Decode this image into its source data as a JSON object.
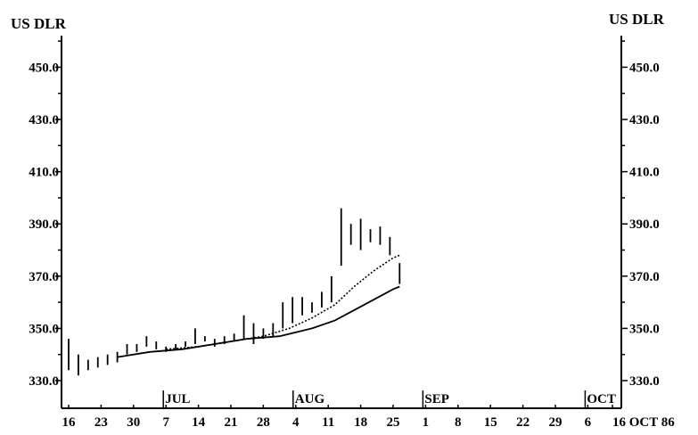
{
  "chart_data": {
    "type": "bar",
    "subtype": "high-low price chart with moving averages",
    "unit_label_left": "US DLR",
    "unit_label_right": "US DLR",
    "y_range": [
      320,
      460
    ],
    "y_ticks": [
      "330.0",
      "350.0",
      "370.0",
      "390.0",
      "410.0",
      "430.0",
      "450.0"
    ],
    "y_tick_values": [
      330,
      350,
      370,
      390,
      410,
      430,
      450
    ],
    "x_tick_labels": [
      "16",
      "23",
      "30",
      "7",
      "14",
      "21",
      "28",
      "4",
      "11",
      "18",
      "25",
      "1",
      "8",
      "15",
      "22",
      "29",
      "6",
      "16 OCT 86"
    ],
    "month_labels": [
      "JUL",
      "AUG",
      "SEP",
      "OCT"
    ],
    "month_start_tick_index": [
      3,
      7,
      11,
      16
    ],
    "grid": false,
    "bars": [
      {
        "t": 0.0,
        "low": 334,
        "high": 346
      },
      {
        "t": 0.3,
        "low": 332,
        "high": 340
      },
      {
        "t": 0.6,
        "low": 334,
        "high": 338
      },
      {
        "t": 0.9,
        "low": 335,
        "high": 339
      },
      {
        "t": 1.2,
        "low": 336,
        "high": 340
      },
      {
        "t": 1.5,
        "low": 337,
        "high": 341
      },
      {
        "t": 1.8,
        "low": 340,
        "high": 344
      },
      {
        "t": 2.1,
        "low": 341,
        "high": 344
      },
      {
        "t": 2.4,
        "low": 343,
        "high": 347
      },
      {
        "t": 2.7,
        "low": 342,
        "high": 345
      },
      {
        "t": 3.0,
        "low": 341,
        "high": 343
      },
      {
        "t": 3.3,
        "low": 342,
        "high": 344
      },
      {
        "t": 3.6,
        "low": 343,
        "high": 345
      },
      {
        "t": 3.9,
        "low": 344,
        "high": 350
      },
      {
        "t": 4.2,
        "low": 345,
        "high": 347
      },
      {
        "t": 4.5,
        "low": 343,
        "high": 346
      },
      {
        "t": 4.8,
        "low": 344,
        "high": 347
      },
      {
        "t": 5.1,
        "low": 345,
        "high": 348
      },
      {
        "t": 5.4,
        "low": 346,
        "high": 355
      },
      {
        "t": 5.7,
        "low": 344,
        "high": 352
      },
      {
        "t": 6.0,
        "low": 346,
        "high": 350
      },
      {
        "t": 6.3,
        "low": 347,
        "high": 352
      },
      {
        "t": 6.6,
        "low": 350,
        "high": 360
      },
      {
        "t": 6.9,
        "low": 352,
        "high": 362
      },
      {
        "t": 7.2,
        "low": 355,
        "high": 362
      },
      {
        "t": 7.5,
        "low": 356,
        "high": 360
      },
      {
        "t": 7.8,
        "low": 358,
        "high": 364
      },
      {
        "t": 8.1,
        "low": 360,
        "high": 370
      },
      {
        "t": 8.4,
        "low": 374,
        "high": 396
      },
      {
        "t": 8.7,
        "low": 382,
        "high": 390
      },
      {
        "t": 9.0,
        "low": 380,
        "high": 392
      },
      {
        "t": 9.3,
        "low": 383,
        "high": 388
      },
      {
        "t": 9.6,
        "low": 382,
        "high": 389
      },
      {
        "t": 9.9,
        "low": 378,
        "high": 385
      },
      {
        "t": 10.2,
        "low": 367,
        "high": 375
      }
    ],
    "moving_average_solid": [
      {
        "t": 1.5,
        "y": 339
      },
      {
        "t": 2.5,
        "y": 341
      },
      {
        "t": 3.5,
        "y": 342
      },
      {
        "t": 4.5,
        "y": 344
      },
      {
        "t": 5.5,
        "y": 346
      },
      {
        "t": 6.5,
        "y": 347
      },
      {
        "t": 7.5,
        "y": 350
      },
      {
        "t": 8.2,
        "y": 353
      },
      {
        "t": 8.8,
        "y": 357
      },
      {
        "t": 9.4,
        "y": 361
      },
      {
        "t": 10.0,
        "y": 365
      },
      {
        "t": 10.2,
        "y": 366
      }
    ],
    "moving_average_dotted": [
      {
        "t": 3.0,
        "y": 342
      },
      {
        "t": 4.0,
        "y": 343
      },
      {
        "t": 5.0,
        "y": 345
      },
      {
        "t": 6.0,
        "y": 347
      },
      {
        "t": 6.8,
        "y": 350
      },
      {
        "t": 7.5,
        "y": 354
      },
      {
        "t": 8.2,
        "y": 359
      },
      {
        "t": 8.8,
        "y": 366
      },
      {
        "t": 9.4,
        "y": 372
      },
      {
        "t": 10.0,
        "y": 377
      },
      {
        "t": 10.2,
        "y": 378
      }
    ]
  }
}
